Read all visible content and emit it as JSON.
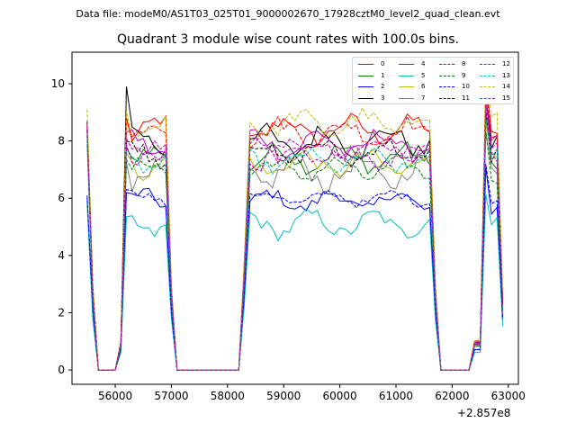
{
  "suptitle": "Data file: modeM0/AS1T03_025T01_9000002670_17928cztM0_level2_quad_clean.evt",
  "chart_data": {
    "type": "line",
    "title": "Quadrant 3 module wise count rates with 100.0s bins.",
    "xlabel": "",
    "ylabel": "",
    "x_offset_label": "+2.857e8",
    "xlim": [
      55230,
      63180
    ],
    "ylim": [
      -0.5,
      11.1
    ],
    "xticks": [
      56000,
      57000,
      58000,
      59000,
      60000,
      61000,
      62000,
      63000
    ],
    "yticks": [
      0,
      2,
      4,
      6,
      8,
      10
    ],
    "xtick_labels": [
      "56000",
      "57000",
      "58000",
      "59000",
      "60000",
      "61000",
      "62000",
      "63000"
    ],
    "ytick_labels": [
      "0",
      "2",
      "4",
      "6",
      "8",
      "10"
    ],
    "legend_position": "top-right",
    "segments": [
      [
        55500,
        55600
      ],
      [
        56100,
        57000
      ],
      [
        58300,
        61700
      ],
      [
        62400,
        62900
      ]
    ],
    "zero_gaps": [
      [
        55600,
        56100
      ],
      [
        57000,
        58300
      ],
      [
        61700,
        62400
      ]
    ],
    "series": [
      {
        "name": "0",
        "color": "#ff0000",
        "dash": false,
        "level": 8.4,
        "amp": 0.35,
        "phase": 0.3,
        "start": 8.6
      },
      {
        "name": "1",
        "color": "#008000",
        "dash": false,
        "level": 7.4,
        "amp": 0.35,
        "phase": 1.1,
        "start": 8.4
      },
      {
        "name": "2",
        "color": "#0000ff",
        "dash": false,
        "level": 5.9,
        "amp": 0.3,
        "phase": 2.0,
        "start": 6.0
      },
      {
        "name": "3",
        "color": "#000000",
        "dash": false,
        "level": 8.0,
        "amp": 0.4,
        "phase": 2.7,
        "start": 8.7
      },
      {
        "name": "4",
        "color": "#bf00bf",
        "dash": false,
        "level": 7.9,
        "amp": 0.4,
        "phase": 3.4,
        "start": 8.5
      },
      {
        "name": "5",
        "color": "#00bfbf",
        "dash": false,
        "level": 5.1,
        "amp": 0.35,
        "phase": 4.1,
        "start": 5.8
      },
      {
        "name": "6",
        "color": "#bfbf00",
        "dash": false,
        "level": 7.2,
        "amp": 0.35,
        "phase": 4.9,
        "start": 8.3
      },
      {
        "name": "7",
        "color": "#808080",
        "dash": false,
        "level": 6.9,
        "amp": 0.45,
        "phase": 5.6,
        "start": 7.9
      },
      {
        "name": "8",
        "color": "#ff0000",
        "dash": true,
        "level": 8.3,
        "amp": 0.35,
        "phase": 0.8,
        "start": 8.5
      },
      {
        "name": "9",
        "color": "#008000",
        "dash": true,
        "level": 7.0,
        "amp": 0.3,
        "phase": 1.6,
        "start": 8.2
      },
      {
        "name": "10",
        "color": "#0000ff",
        "dash": true,
        "level": 6.0,
        "amp": 0.2,
        "phase": 2.4,
        "start": 6.1
      },
      {
        "name": "11",
        "color": "#000000",
        "dash": true,
        "level": 7.6,
        "amp": 0.35,
        "phase": 3.1,
        "start": 8.4
      },
      {
        "name": "12",
        "color": "#bf00bf",
        "dash": true,
        "level": 7.7,
        "amp": 0.3,
        "phase": 3.9,
        "start": 8.6
      },
      {
        "name": "13",
        "color": "#00bfbf",
        "dash": true,
        "level": 7.3,
        "amp": 0.3,
        "phase": 4.6,
        "start": 8.1
      },
      {
        "name": "14",
        "color": "#bfbf00",
        "dash": true,
        "level": 8.6,
        "amp": 0.35,
        "phase": 5.2,
        "start": 9.1
      },
      {
        "name": "15",
        "color": "#bf00bf",
        "dash": true,
        "level": 7.5,
        "amp": 0.35,
        "phase": 0.1,
        "start": 8.4
      }
    ]
  }
}
